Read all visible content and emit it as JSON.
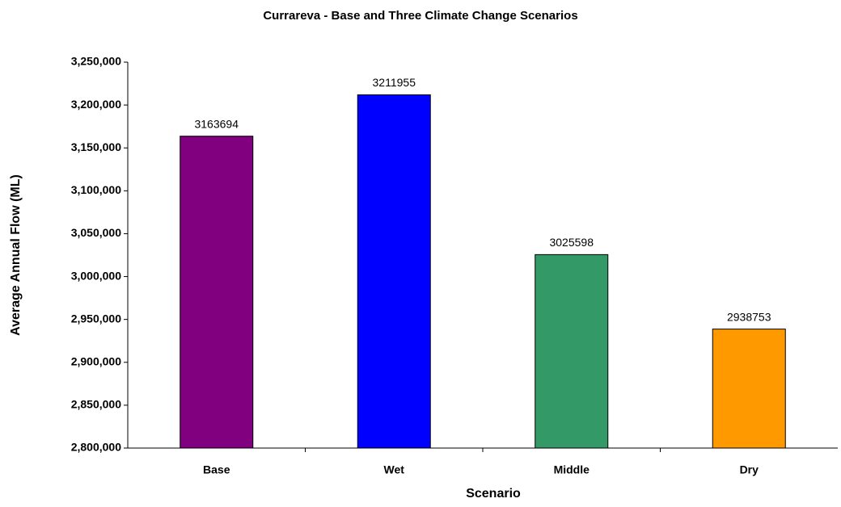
{
  "chart_data": {
    "type": "bar",
    "title": "Currareva - Base and Three Climate Change Scenarios",
    "x_label": "Scenario",
    "y_label": "Average Annual Flow (ML)",
    "categories": [
      "Base",
      "Wet",
      "Middle",
      "Dry"
    ],
    "values": [
      3163694,
      3211955,
      3025598,
      2938753
    ],
    "colors": [
      "#800080",
      "#0000ff",
      "#339966",
      "#ff9900"
    ],
    "ylim": [
      2800000,
      3250000
    ],
    "yticks": [
      {
        "value": 2800000,
        "label": "2,800,000"
      },
      {
        "value": 2850000,
        "label": "2,850,000"
      },
      {
        "value": 2900000,
        "label": "2,900,000"
      },
      {
        "value": 2950000,
        "label": "2,950,000"
      },
      {
        "value": 3000000,
        "label": "3,000,000"
      },
      {
        "value": 3050000,
        "label": "3,050,000"
      },
      {
        "value": 3100000,
        "label": "3,100,000"
      },
      {
        "value": 3150000,
        "label": "3,150,000"
      },
      {
        "value": 3200000,
        "label": "3,200,000"
      },
      {
        "value": 3250000,
        "label": "3,250,000"
      }
    ],
    "grid": false
  }
}
